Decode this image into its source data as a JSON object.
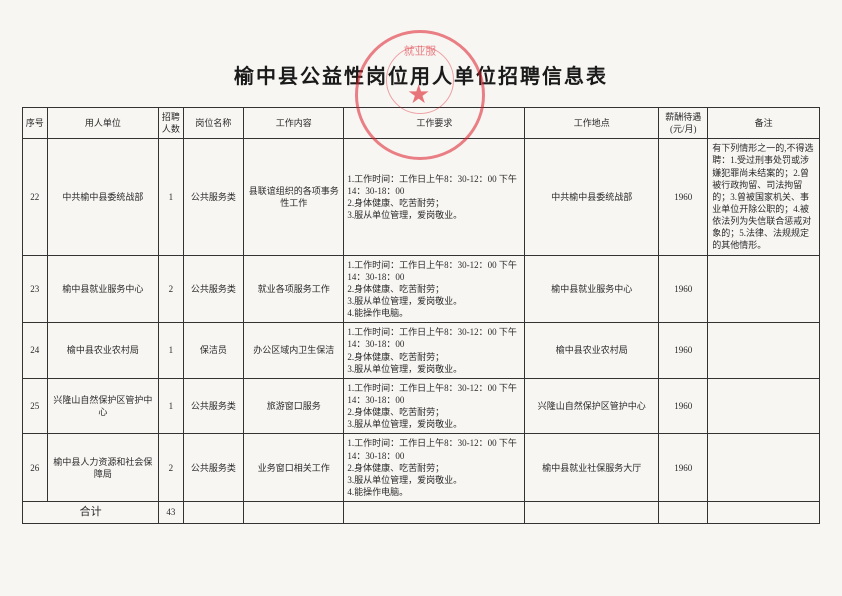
{
  "title": "榆中县公益性岗位用人单位招聘信息表",
  "stamp_text": "就业服",
  "headers": {
    "seq": "序号",
    "org": "用人单位",
    "num": "招聘人数",
    "post": "岗位名称",
    "content": "工作内容",
    "req": "工作要求",
    "loc": "工作地点",
    "salary": "薪酬待遇(元/月)",
    "note": "备注"
  },
  "rows": [
    {
      "seq": "22",
      "org": "中共榆中县委统战部",
      "num": "1",
      "post": "公共服务类",
      "content": "县联谊组织的各项事务性工作",
      "req": "1.工作时间：工作日上午8：30-12：00 下午14：30-18：00\n2.身体健康、吃苦耐劳；\n3.服从单位管理，爱岗敬业。",
      "loc": "中共榆中县委统战部",
      "salary": "1960",
      "note": "有下列情形之一的,不得选聘：1.受过刑事处罚或涉嫌犯罪尚未结案的；2.曾被行政拘留、司法拘留的；3.曾被国家机关、事业单位开除公职的；4.被依法列为失信联合惩戒对象的；5.法律、法规规定的其他情形。"
    },
    {
      "seq": "23",
      "org": "榆中县就业服务中心",
      "num": "2",
      "post": "公共服务类",
      "content": "就业各项服务工作",
      "req": "1.工作时间：工作日上午8：30-12：00 下午14：30-18：00\n2.身体健康、吃苦耐劳；\n3.服从单位管理，爱岗敬业。\n4.能操作电脑。",
      "loc": "榆中县就业服务中心",
      "salary": "1960",
      "note": ""
    },
    {
      "seq": "24",
      "org": "榆中县农业农村局",
      "num": "1",
      "post": "保洁员",
      "content": "办公区域内卫生保洁",
      "req": "1.工作时间：工作日上午8：30-12：00 下午14：30-18：00\n2.身体健康、吃苦耐劳；\n3.服从单位管理，爱岗敬业。",
      "loc": "榆中县农业农村局",
      "salary": "1960",
      "note": ""
    },
    {
      "seq": "25",
      "org": "兴隆山自然保护区管护中心",
      "num": "1",
      "post": "公共服务类",
      "content": "旅游窗口服务",
      "req": "1.工作时间：工作日上午8：30-12：00 下午14：30-18：00\n2.身体健康、吃苦耐劳；\n3.服从单位管理，爱岗敬业。",
      "loc": "兴隆山自然保护区管护中心",
      "salary": "1960",
      "note": ""
    },
    {
      "seq": "26",
      "org": "榆中县人力资源和社会保障局",
      "num": "2",
      "post": "公共服务类",
      "content": "业务窗口相关工作",
      "req": "1.工作时间：工作日上午8：30-12：00 下午14：30-18：00\n2.身体健康、吃苦耐劳；\n3.服从单位管理，爱岗敬业。\n4.能操作电脑。",
      "loc": "榆中县就业社保服务大厅",
      "salary": "1960",
      "note": ""
    }
  ],
  "total": {
    "label": "合计",
    "num": "43"
  },
  "colors": {
    "stamp": "rgba(220,30,40,0.55)",
    "border": "#333",
    "text": "#2a2a2a",
    "bg": "#f8f6f3"
  }
}
